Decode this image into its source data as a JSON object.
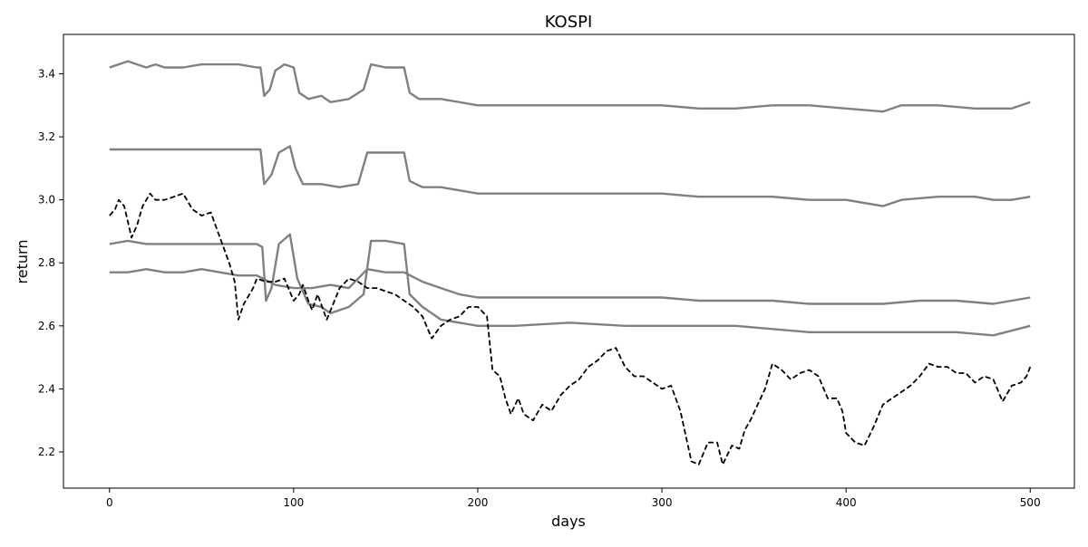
{
  "chart_data": {
    "type": "line",
    "title": "KOSPI",
    "xlabel": "days",
    "ylabel": "return",
    "xlim": [
      -25,
      524
    ],
    "ylim": [
      2.085,
      3.525
    ],
    "xticks": [
      0,
      100,
      200,
      300,
      400,
      500
    ],
    "yticks": [
      2.2,
      2.4,
      2.6,
      2.8,
      3.0,
      3.2,
      3.4
    ],
    "grid": false,
    "legend": "none",
    "colors": {
      "simulated": "#808080",
      "actual": "#000000"
    },
    "series": [
      {
        "style": "solid",
        "color": "#808080",
        "points": [
          [
            0,
            3.42
          ],
          [
            5,
            3.43
          ],
          [
            10,
            3.44
          ],
          [
            15,
            3.43
          ],
          [
            20,
            3.42
          ],
          [
            25,
            3.43
          ],
          [
            30,
            3.42
          ],
          [
            40,
            3.42
          ],
          [
            50,
            3.43
          ],
          [
            60,
            3.43
          ],
          [
            70,
            3.43
          ],
          [
            80,
            3.42
          ],
          [
            82,
            3.42
          ],
          [
            84,
            3.33
          ],
          [
            87,
            3.35
          ],
          [
            90,
            3.41
          ],
          [
            95,
            3.43
          ],
          [
            100,
            3.42
          ],
          [
            103,
            3.34
          ],
          [
            108,
            3.32
          ],
          [
            115,
            3.33
          ],
          [
            120,
            3.31
          ],
          [
            130,
            3.32
          ],
          [
            138,
            3.35
          ],
          [
            142,
            3.43
          ],
          [
            150,
            3.42
          ],
          [
            160,
            3.42
          ],
          [
            163,
            3.34
          ],
          [
            168,
            3.32
          ],
          [
            180,
            3.32
          ],
          [
            200,
            3.3
          ],
          [
            220,
            3.3
          ],
          [
            250,
            3.3
          ],
          [
            280,
            3.3
          ],
          [
            300,
            3.3
          ],
          [
            320,
            3.29
          ],
          [
            340,
            3.29
          ],
          [
            360,
            3.3
          ],
          [
            380,
            3.3
          ],
          [
            400,
            3.29
          ],
          [
            420,
            3.28
          ],
          [
            430,
            3.3
          ],
          [
            450,
            3.3
          ],
          [
            470,
            3.29
          ],
          [
            480,
            3.29
          ],
          [
            490,
            3.29
          ],
          [
            500,
            3.31
          ]
        ]
      },
      {
        "style": "solid",
        "color": "#808080",
        "points": [
          [
            0,
            3.16
          ],
          [
            10,
            3.16
          ],
          [
            20,
            3.16
          ],
          [
            30,
            3.16
          ],
          [
            40,
            3.16
          ],
          [
            50,
            3.16
          ],
          [
            60,
            3.16
          ],
          [
            70,
            3.16
          ],
          [
            80,
            3.16
          ],
          [
            82,
            3.16
          ],
          [
            84,
            3.05
          ],
          [
            88,
            3.08
          ],
          [
            92,
            3.15
          ],
          [
            98,
            3.17
          ],
          [
            101,
            3.1
          ],
          [
            105,
            3.05
          ],
          [
            115,
            3.05
          ],
          [
            125,
            3.04
          ],
          [
            135,
            3.05
          ],
          [
            140,
            3.15
          ],
          [
            150,
            3.15
          ],
          [
            160,
            3.15
          ],
          [
            163,
            3.06
          ],
          [
            170,
            3.04
          ],
          [
            180,
            3.04
          ],
          [
            200,
            3.02
          ],
          [
            220,
            3.02
          ],
          [
            250,
            3.02
          ],
          [
            280,
            3.02
          ],
          [
            300,
            3.02
          ],
          [
            320,
            3.01
          ],
          [
            340,
            3.01
          ],
          [
            360,
            3.01
          ],
          [
            380,
            3.0
          ],
          [
            400,
            3.0
          ],
          [
            420,
            2.98
          ],
          [
            430,
            3.0
          ],
          [
            450,
            3.01
          ],
          [
            470,
            3.01
          ],
          [
            480,
            3.0
          ],
          [
            490,
            3.0
          ],
          [
            500,
            3.01
          ]
        ]
      },
      {
        "style": "solid",
        "color": "#808080",
        "points": [
          [
            0,
            2.86
          ],
          [
            10,
            2.87
          ],
          [
            20,
            2.86
          ],
          [
            30,
            2.86
          ],
          [
            40,
            2.86
          ],
          [
            50,
            2.86
          ],
          [
            60,
            2.86
          ],
          [
            70,
            2.86
          ],
          [
            80,
            2.86
          ],
          [
            83,
            2.85
          ],
          [
            85,
            2.68
          ],
          [
            88,
            2.72
          ],
          [
            92,
            2.86
          ],
          [
            98,
            2.89
          ],
          [
            102,
            2.75
          ],
          [
            108,
            2.67
          ],
          [
            115,
            2.66
          ],
          [
            120,
            2.64
          ],
          [
            130,
            2.66
          ],
          [
            138,
            2.7
          ],
          [
            142,
            2.87
          ],
          [
            150,
            2.87
          ],
          [
            160,
            2.86
          ],
          [
            163,
            2.7
          ],
          [
            170,
            2.66
          ],
          [
            180,
            2.62
          ],
          [
            200,
            2.6
          ],
          [
            220,
            2.6
          ],
          [
            250,
            2.61
          ],
          [
            280,
            2.6
          ],
          [
            300,
            2.6
          ],
          [
            320,
            2.6
          ],
          [
            340,
            2.6
          ],
          [
            360,
            2.59
          ],
          [
            380,
            2.58
          ],
          [
            400,
            2.58
          ],
          [
            420,
            2.58
          ],
          [
            440,
            2.58
          ],
          [
            460,
            2.58
          ],
          [
            480,
            2.57
          ],
          [
            500,
            2.6
          ]
        ]
      },
      {
        "style": "solid",
        "color": "#808080",
        "points": [
          [
            0,
            2.77
          ],
          [
            10,
            2.77
          ],
          [
            20,
            2.78
          ],
          [
            30,
            2.77
          ],
          [
            40,
            2.77
          ],
          [
            50,
            2.78
          ],
          [
            60,
            2.77
          ],
          [
            70,
            2.76
          ],
          [
            80,
            2.76
          ],
          [
            90,
            2.73
          ],
          [
            100,
            2.72
          ],
          [
            110,
            2.72
          ],
          [
            120,
            2.73
          ],
          [
            130,
            2.72
          ],
          [
            140,
            2.78
          ],
          [
            150,
            2.77
          ],
          [
            160,
            2.77
          ],
          [
            170,
            2.74
          ],
          [
            180,
            2.72
          ],
          [
            190,
            2.7
          ],
          [
            200,
            2.69
          ],
          [
            220,
            2.69
          ],
          [
            250,
            2.69
          ],
          [
            280,
            2.69
          ],
          [
            300,
            2.69
          ],
          [
            320,
            2.68
          ],
          [
            340,
            2.68
          ],
          [
            360,
            2.68
          ],
          [
            380,
            2.67
          ],
          [
            400,
            2.67
          ],
          [
            420,
            2.67
          ],
          [
            440,
            2.68
          ],
          [
            460,
            2.68
          ],
          [
            480,
            2.67
          ],
          [
            500,
            2.69
          ]
        ]
      },
      {
        "style": "dashed",
        "color": "#000000",
        "points": [
          [
            0,
            2.95
          ],
          [
            3,
            2.97
          ],
          [
            5,
            3.0
          ],
          [
            8,
            2.98
          ],
          [
            10,
            2.93
          ],
          [
            12,
            2.88
          ],
          [
            15,
            2.92
          ],
          [
            18,
            2.98
          ],
          [
            22,
            3.02
          ],
          [
            25,
            3.0
          ],
          [
            30,
            3.0
          ],
          [
            35,
            3.01
          ],
          [
            40,
            3.02
          ],
          [
            45,
            2.97
          ],
          [
            50,
            2.95
          ],
          [
            55,
            2.96
          ],
          [
            60,
            2.88
          ],
          [
            65,
            2.8
          ],
          [
            68,
            2.74
          ],
          [
            70,
            2.62
          ],
          [
            73,
            2.67
          ],
          [
            78,
            2.72
          ],
          [
            80,
            2.75
          ],
          [
            85,
            2.74
          ],
          [
            90,
            2.74
          ],
          [
            95,
            2.75
          ],
          [
            100,
            2.68
          ],
          [
            103,
            2.7
          ],
          [
            105,
            2.73
          ],
          [
            108,
            2.68
          ],
          [
            110,
            2.65
          ],
          [
            113,
            2.7
          ],
          [
            118,
            2.62
          ],
          [
            125,
            2.72
          ],
          [
            130,
            2.75
          ],
          [
            135,
            2.74
          ],
          [
            140,
            2.72
          ],
          [
            145,
            2.72
          ],
          [
            150,
            2.71
          ],
          [
            155,
            2.7
          ],
          [
            160,
            2.68
          ],
          [
            165,
            2.66
          ],
          [
            170,
            2.63
          ],
          [
            175,
            2.56
          ],
          [
            180,
            2.6
          ],
          [
            185,
            2.62
          ],
          [
            190,
            2.63
          ],
          [
            195,
            2.66
          ],
          [
            200,
            2.66
          ],
          [
            205,
            2.63
          ],
          [
            208,
            2.46
          ],
          [
            212,
            2.44
          ],
          [
            215,
            2.37
          ],
          [
            218,
            2.32
          ],
          [
            222,
            2.37
          ],
          [
            225,
            2.32
          ],
          [
            230,
            2.3
          ],
          [
            235,
            2.35
          ],
          [
            240,
            2.33
          ],
          [
            245,
            2.38
          ],
          [
            250,
            2.41
          ],
          [
            255,
            2.43
          ],
          [
            260,
            2.47
          ],
          [
            265,
            2.49
          ],
          [
            270,
            2.52
          ],
          [
            275,
            2.53
          ],
          [
            280,
            2.47
          ],
          [
            285,
            2.44
          ],
          [
            290,
            2.44
          ],
          [
            295,
            2.42
          ],
          [
            300,
            2.4
          ],
          [
            305,
            2.41
          ],
          [
            310,
            2.33
          ],
          [
            313,
            2.25
          ],
          [
            316,
            2.17
          ],
          [
            320,
            2.16
          ],
          [
            325,
            2.23
          ],
          [
            330,
            2.23
          ],
          [
            333,
            2.16
          ],
          [
            338,
            2.22
          ],
          [
            342,
            2.21
          ],
          [
            345,
            2.27
          ],
          [
            348,
            2.3
          ],
          [
            352,
            2.35
          ],
          [
            356,
            2.4
          ],
          [
            360,
            2.48
          ],
          [
            365,
            2.46
          ],
          [
            370,
            2.43
          ],
          [
            375,
            2.45
          ],
          [
            380,
            2.46
          ],
          [
            385,
            2.44
          ],
          [
            390,
            2.37
          ],
          [
            395,
            2.37
          ],
          [
            398,
            2.33
          ],
          [
            400,
            2.26
          ],
          [
            405,
            2.23
          ],
          [
            410,
            2.22
          ],
          [
            415,
            2.28
          ],
          [
            420,
            2.35
          ],
          [
            425,
            2.37
          ],
          [
            430,
            2.39
          ],
          [
            435,
            2.41
          ],
          [
            440,
            2.44
          ],
          [
            445,
            2.48
          ],
          [
            450,
            2.47
          ],
          [
            455,
            2.47
          ],
          [
            460,
            2.45
          ],
          [
            465,
            2.45
          ],
          [
            470,
            2.42
          ],
          [
            475,
            2.44
          ],
          [
            480,
            2.43
          ],
          [
            485,
            2.36
          ],
          [
            490,
            2.41
          ],
          [
            495,
            2.42
          ],
          [
            498,
            2.44
          ],
          [
            500,
            2.47
          ]
        ]
      }
    ]
  }
}
